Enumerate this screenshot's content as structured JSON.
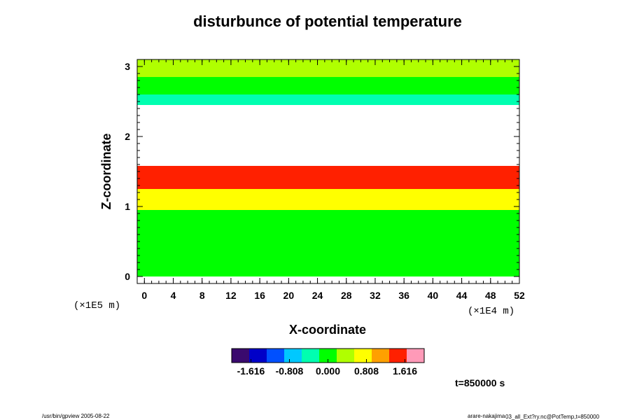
{
  "chart_data": {
    "type": "heatmap",
    "title": "disturbunce of potential temperature",
    "xlabel": "X-coordinate",
    "ylabel": "Z-coordinate",
    "xlim": [
      -1,
      52
    ],
    "ylim": [
      -0.1,
      3.1
    ],
    "x_ticks": [
      0,
      4,
      8,
      12,
      16,
      20,
      24,
      28,
      32,
      36,
      40,
      44,
      48,
      52
    ],
    "x_tick_labels": [
      "0",
      "4",
      "8",
      "12",
      "16",
      "20",
      "24",
      "28",
      "32",
      "36",
      "40",
      "44",
      "48",
      "52"
    ],
    "y_ticks": [
      0,
      1,
      2,
      3
    ],
    "y_tick_labels": [
      "0",
      "1",
      "2",
      "3"
    ],
    "x_scale_label": "(×1E4 m)",
    "y_scale_label": "(×1E5 m)",
    "colorbar": {
      "range": [
        -2.02,
        2.02
      ],
      "tick_values": [
        -1.616,
        -0.808,
        0.0,
        0.808,
        1.616
      ],
      "tick_labels": [
        "-1.616",
        "-0.808",
        "0.000",
        "0.808",
        "1.616"
      ],
      "colors": [
        "#3a0a6e",
        "#0000c8",
        "#0050ff",
        "#00c8ff",
        "#00ffb0",
        "#00ff00",
        "#b0ff00",
        "#ffff00",
        "#ffa000",
        "#ff2000",
        "#ff9ab8"
      ]
    },
    "layers": [
      {
        "z": [
          0.0,
          0.95
        ],
        "value": 0.0
      },
      {
        "z": [
          0.95,
          1.25
        ],
        "value": 0.7
      },
      {
        "z": [
          1.25,
          1.45
        ],
        "value": 1.3
      },
      {
        "z": [
          1.45,
          1.58
        ],
        "value": 1.6
      },
      {
        "z": [
          1.58,
          2.45
        ],
        "value": null
      },
      {
        "z": [
          2.45,
          2.6
        ],
        "value": -0.3
      },
      {
        "z": [
          2.6,
          2.85
        ],
        "value": -0.05
      },
      {
        "z": [
          2.85,
          3.1
        ],
        "value": 0.2
      }
    ],
    "time_label": "t=850000 s"
  },
  "footer": {
    "left": "/usr/bin/gpview 2005-08-22",
    "right_main": "arare-nakajima",
    "right_sub": "03_all_Ext?ry.nc@PotTemp,t=850000"
  },
  "colors": {
    "axis": "#000000",
    "missing": "#ffffff"
  }
}
